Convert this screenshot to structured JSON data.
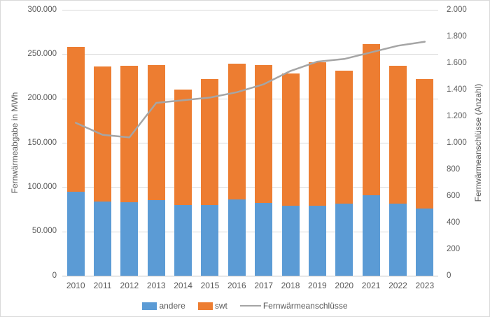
{
  "chart_data": {
    "type": "combo",
    "subtype": "stacked-bar-with-line",
    "categories": [
      "2010",
      "2011",
      "2012",
      "2013",
      "2014",
      "2015",
      "2016",
      "2017",
      "2018",
      "2019",
      "2020",
      "2021",
      "2022",
      "2023"
    ],
    "bar_series": [
      {
        "name": "andere",
        "color": "#5B9BD5",
        "axis": "left",
        "values": [
          95000,
          84000,
          83000,
          85000,
          80000,
          80000,
          86000,
          82000,
          79000,
          79000,
          81000,
          91000,
          81000,
          76000
        ]
      },
      {
        "name": "swt",
        "color": "#ED7D31",
        "axis": "left",
        "values": [
          163000,
          152000,
          154000,
          153000,
          130000,
          142000,
          153000,
          156000,
          149000,
          162000,
          150000,
          170000,
          156000,
          146000
        ]
      }
    ],
    "line_series": {
      "name": "Fernwärmeanschlüsse",
      "color": "#A5A5A5",
      "axis": "right",
      "values": [
        1150,
        1060,
        1040,
        1300,
        1320,
        1340,
        1380,
        1440,
        1540,
        1610,
        1630,
        1680,
        1730,
        1760
      ]
    },
    "left_axis": {
      "title": "Fernwärmeabgabe in MWh",
      "min": 0,
      "max": 300000,
      "tick_labels": [
        "300.000",
        "250.000",
        "200.000",
        "150.000",
        "100.000",
        "50.000",
        "0"
      ]
    },
    "right_axis": {
      "title": "Fernwärmeanschlüsse (Anzahl)",
      "min": 0,
      "max": 2000,
      "tick_labels": [
        "2.000",
        "1.800",
        "1.600",
        "1.400",
        "1.200",
        "1.000",
        "800",
        "600",
        "400",
        "200",
        "0"
      ]
    },
    "legend": {
      "position": "bottom",
      "items": [
        {
          "label": "andere",
          "marker": "rect",
          "color": "#5B9BD5"
        },
        {
          "label": "swt",
          "marker": "rect",
          "color": "#ED7D31"
        },
        {
          "label": "Fernwärmeanschlüsse",
          "marker": "line",
          "color": "#A5A5A5"
        }
      ]
    },
    "grid": true,
    "colors": {
      "gridline": "#D9D9D9",
      "axis_line": "#BFBFBF",
      "text": "#595959",
      "background": "#FFFFFF"
    }
  }
}
